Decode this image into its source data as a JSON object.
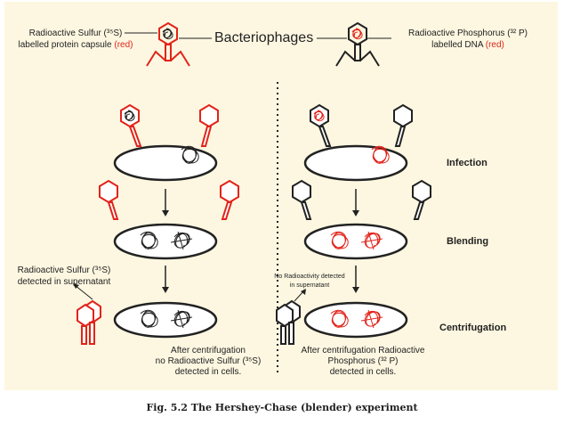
{
  "header": {
    "title": "Bacteriophages",
    "left_label_line1": "Radioactive Sulfur (³⁵S)",
    "left_label_line2_prefix": "labelled protein capsule ",
    "left_label_line2_red": "(red)",
    "right_label_line1": "Radioactive Phosphorus (³² P)",
    "right_label_line2_prefix": "labelled DNA ",
    "right_label_line2_red": "(red)"
  },
  "stages": {
    "infection": "Infection",
    "blending": "Blending",
    "centrifugation": "Centrifugation"
  },
  "left_panel": {
    "supernatant_note_line1": "Radioactive Sulfur (³⁵S)",
    "supernatant_note_line2": "detected in supernatant",
    "result_line1": "After centrifugation",
    "result_line2": "no Radioactive Sulfur (³⁵S)",
    "result_line3": "detected in cells."
  },
  "right_panel": {
    "supernatant_note_line1": "No Radioactivity detected",
    "supernatant_note_line2": "in supernatant",
    "result_line1": "After centrifugation Radioactive",
    "result_line2": "Phosphorus (³² P)",
    "result_line3": "detected in cells."
  },
  "caption": "Fig. 5.2 The Hershey-Chase (blender) experiment",
  "colors": {
    "background": "#fdf7e1",
    "label_red": "#e2231a",
    "outline": "#222222"
  }
}
